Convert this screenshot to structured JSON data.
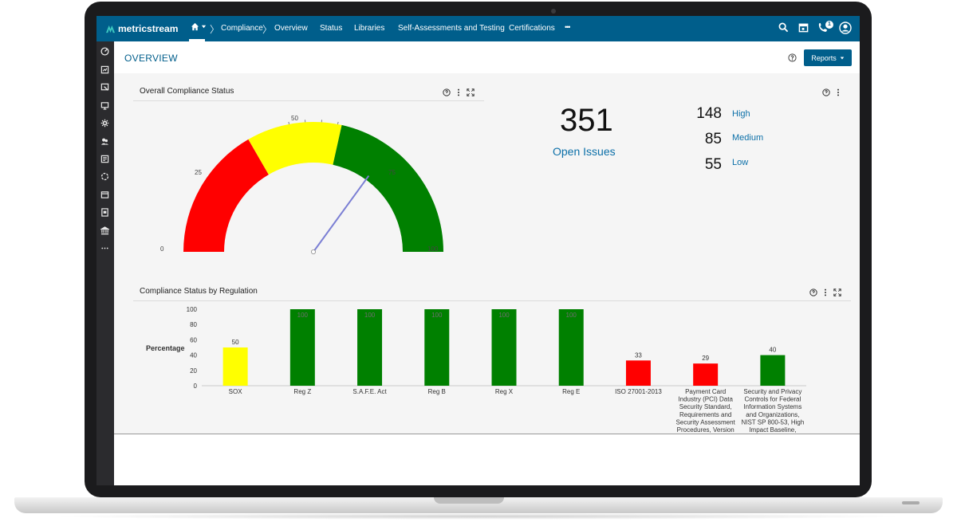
{
  "app": {
    "brand": "metricstream"
  },
  "nav": {
    "items": [
      "Compliance",
      "Overview",
      "Status",
      "Libraries",
      "Self-Assessments and Testing",
      "Certifications"
    ],
    "more": "•••",
    "notification_count": "1"
  },
  "page": {
    "title": "OVERVIEW",
    "reports_label": "Reports"
  },
  "gauge_panel": {
    "title": "Overall Compliance Status",
    "ticks": [
      "0",
      "25",
      "50",
      "75",
      "100"
    ],
    "needle_value": 70,
    "colors": {
      "red": "#ff0000",
      "yellow": "#ffff00",
      "green": "#008000",
      "needle": "#7b7fd4"
    }
  },
  "issues": {
    "total": "351",
    "total_label": "Open Issues",
    "breakdown": [
      {
        "count": "148",
        "label": "High"
      },
      {
        "count": "85",
        "label": "Medium"
      },
      {
        "count": "55",
        "label": "Low"
      }
    ]
  },
  "bar_panel": {
    "title": "Compliance Status by Regulation"
  },
  "chart_data": {
    "type": "bar",
    "ylabel": "Percentage",
    "ylim": [
      0,
      100
    ],
    "yticks": [
      "0",
      "20",
      "40",
      "60",
      "80",
      "100"
    ],
    "categories": [
      "SOX",
      "Reg Z",
      "S.A.F.E. Act",
      "Reg B",
      "Reg X",
      "Reg E",
      "ISO 27001-2013",
      "Payment Card Industry (PCI) Data Security Standard, Requirements and Security Assessment Procedures, Version",
      "Security and Privacy Controls for Federal Information Systems and Organizations, NIST SP 800-53, High Impact Baseline,"
    ],
    "category_lines": [
      [
        "SOX"
      ],
      [
        "Reg Z"
      ],
      [
        "S.A.F.E. Act"
      ],
      [
        "Reg B"
      ],
      [
        "Reg X"
      ],
      [
        "Reg E"
      ],
      [
        "ISO 27001-2013"
      ],
      [
        "Payment Card",
        "Industry (PCI) Data",
        "Security Standard,",
        "Requirements and",
        "Security Assessment",
        "Procedures, Version"
      ],
      [
        "Security and Privacy",
        "Controls for Federal",
        "Information Systems",
        "and Organizations,",
        "NIST SP 800-53, High",
        "Impact Baseline,"
      ]
    ],
    "values": [
      50,
      100,
      100,
      100,
      100,
      100,
      33,
      29,
      40
    ],
    "data_labels": [
      "50",
      "100",
      "100",
      "100",
      "100",
      "100",
      "33",
      "29",
      "40"
    ],
    "colors": [
      "#ffff00",
      "#008000",
      "#008000",
      "#008000",
      "#008000",
      "#008000",
      "#ff0000",
      "#ff0000",
      "#008000"
    ]
  }
}
